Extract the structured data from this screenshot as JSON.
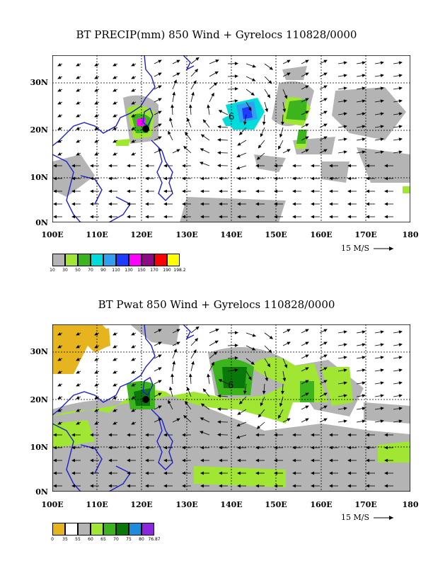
{
  "panels": [
    {
      "title": "BT PRECIP(mm) 850 Wind + Gyrelocs 110828/0000",
      "y_labels": [
        "30N",
        "20N",
        "10N",
        "0N"
      ],
      "x_labels": [
        "100E",
        "110E",
        "120E",
        "130E",
        "140E",
        "150E",
        "160E",
        "170E",
        "180"
      ],
      "ref_vector": "15 M/S",
      "legend": {
        "colors": [
          "#b4b4b4",
          "#a0e632",
          "#3cb41e",
          "#00dcdc",
          "#32a0f0",
          "#1e3cff",
          "#ff00ff",
          "#8c0a82",
          "#ff0000",
          "#ffff00"
        ],
        "labels": [
          "10",
          "30",
          "50",
          "70",
          "90",
          "110",
          "130",
          "150",
          "170",
          "190",
          "198.2"
        ]
      },
      "gyre_marker": "6"
    },
    {
      "title": "BT Pwat 850 Wind + Gyrelocs 110828/0000",
      "y_labels": [
        "30N",
        "20N",
        "10N",
        "0N"
      ],
      "x_labels": [
        "100E",
        "110E",
        "120E",
        "130E",
        "140E",
        "150E",
        "160E",
        "170E",
        "180"
      ],
      "ref_vector": "15 M/S",
      "legend": {
        "colors": [
          "#e6b41e",
          "#ffffff",
          "#b4b4b4",
          "#a0e632",
          "#3cb41e",
          "#087808",
          "#1e8cdc",
          "#8c28dc"
        ],
        "labels": [
          "0",
          "35",
          "55",
          "60",
          "65",
          "70",
          "75",
          "80",
          "76.87"
        ]
      },
      "gyre_marker": "6"
    }
  ]
}
